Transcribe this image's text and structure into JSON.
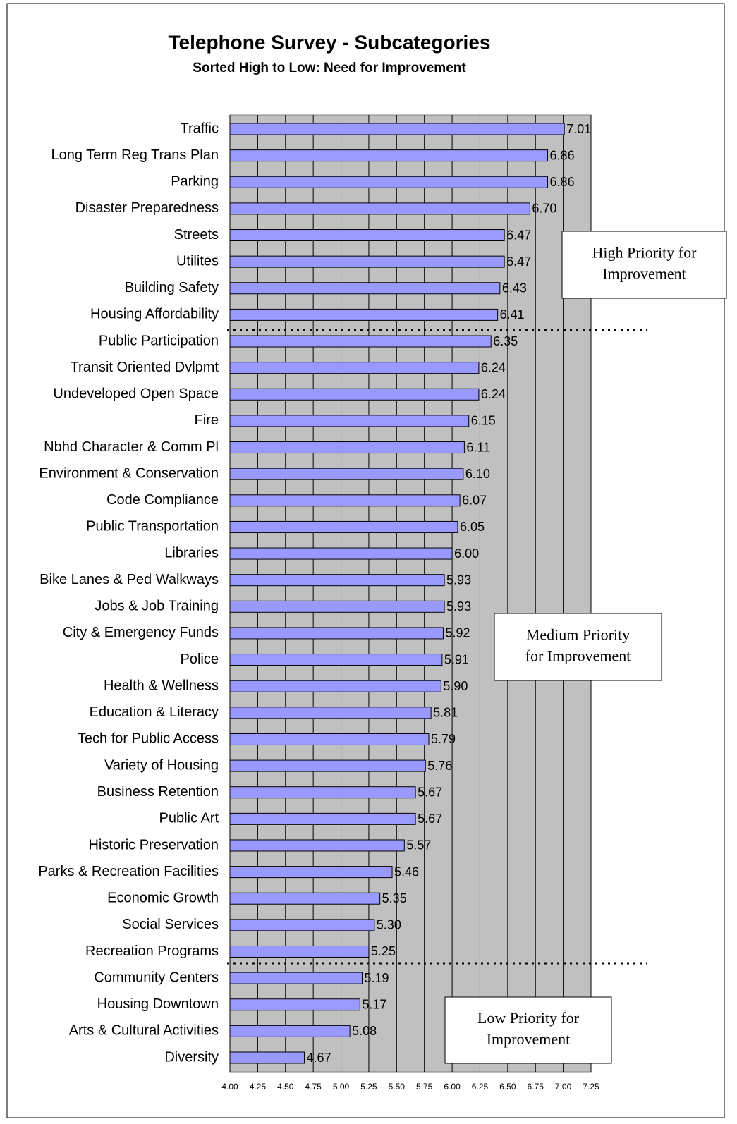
{
  "chart_data": {
    "type": "bar",
    "orientation": "horizontal",
    "title": "Telephone Survey - Subcategories",
    "subtitle": "Sorted High to Low: Need for Improvement",
    "categories": [
      "Traffic",
      "Long Term Reg Trans Plan",
      "Parking",
      "Disaster Preparedness",
      "Streets",
      "Utilites",
      "Building Safety",
      "Housing Affordability",
      "Public Participation",
      "Transit Oriented Dvlpmt",
      "Undeveloped Open Space",
      "Fire",
      "Nbhd Character & Comm Pl",
      "Environment & Conservation",
      "Code Compliance",
      "Public Transportation",
      "Libraries",
      "Bike Lanes & Ped Walkways",
      "Jobs & Job Training",
      "City & Emergency Funds",
      "Police",
      "Health & Wellness",
      "Education & Literacy",
      "Tech for Public Access",
      "Variety of Housing",
      "Business Retention",
      "Public Art",
      "Historic Preservation",
      "Parks & Recreation Facilities",
      "Economic Growth",
      "Social Services",
      "Recreation Programs",
      "Community Centers",
      "Housing Downtown",
      "Arts & Cultural Activities",
      "Diversity"
    ],
    "values": [
      7.01,
      6.86,
      6.86,
      6.7,
      6.47,
      6.47,
      6.43,
      6.41,
      6.35,
      6.24,
      6.24,
      6.15,
      6.11,
      6.1,
      6.07,
      6.05,
      6,
      5.93,
      5.93,
      5.92,
      5.91,
      5.9,
      5.81,
      5.79,
      5.76,
      5.67,
      5.67,
      5.57,
      5.46,
      5.35,
      5.3,
      5.25,
      5.19,
      5.17,
      5.08,
      4.67
    ],
    "value_labels": [
      "7.01",
      "6.86",
      "6.86",
      "6.70",
      "6.47",
      "6.47",
      "6.43",
      "6.41",
      "6.35",
      "6.24",
      "6.24",
      "6.15",
      "6.11",
      "6.10",
      "6.07",
      "6.05",
      "6.00",
      "5.93",
      "5.93",
      "5.92",
      "5.91",
      "5.90",
      "5.81",
      "5.79",
      "5.76",
      "5.67",
      "5.67",
      "5.57",
      "5.46",
      "5.35",
      "5.30",
      "5.25",
      "5.19",
      "5.17",
      "5.08",
      "4.67"
    ],
    "color": "#9999ff",
    "xlim": [
      4,
      7.25
    ],
    "xticks": [
      {
        "value": 4,
        "label": "4.00"
      },
      {
        "value": 4.25,
        "label": "4.25"
      },
      {
        "value": 4.5,
        "label": "4.50"
      },
      {
        "value": 4.75,
        "label": "4.75"
      },
      {
        "value": 5,
        "label": "5.00"
      },
      {
        "value": 5.25,
        "label": "5.25"
      },
      {
        "value": 5.5,
        "label": "5.50"
      },
      {
        "value": 5.75,
        "label": "5.75"
      },
      {
        "value": 6,
        "label": "6.00"
      },
      {
        "value": 6.25,
        "label": "6.25"
      },
      {
        "value": 6.5,
        "label": "6.50"
      },
      {
        "value": 6.75,
        "label": "6.75"
      },
      {
        "value": 7,
        "label": "7.00"
      },
      {
        "value": 7.25,
        "label": "7.25"
      }
    ],
    "grid": true,
    "annotations": [
      {
        "lines": [
          "High Priority for",
          "Improvement"
        ]
      },
      {
        "lines": [
          "Medium Priority",
          "for Improvement"
        ]
      },
      {
        "lines": [
          "Low Priority for",
          "Improvement"
        ]
      }
    ]
  }
}
